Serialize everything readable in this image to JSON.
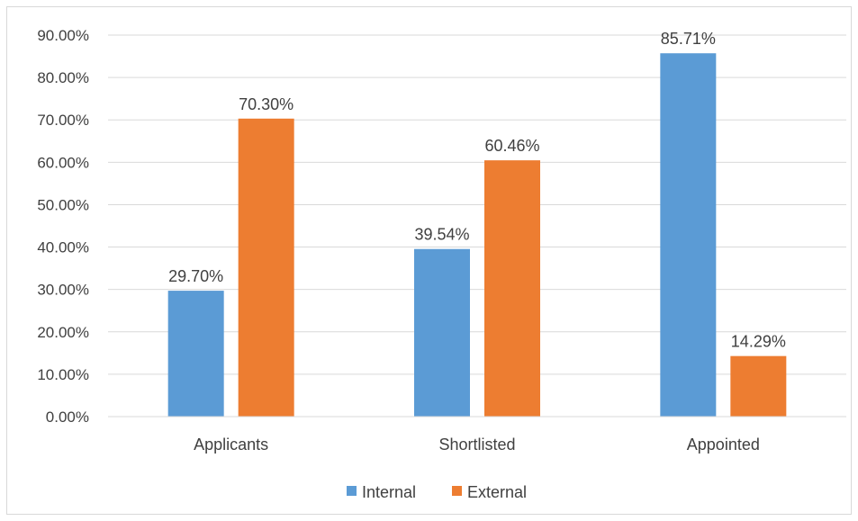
{
  "chart_data": {
    "type": "bar",
    "categories": [
      "Applicants",
      "Shortlisted",
      "Appointed"
    ],
    "series": [
      {
        "name": "Internal",
        "values": [
          29.7,
          39.54,
          85.71
        ],
        "labels": [
          "29.70%",
          "39.54%",
          "85.71%"
        ],
        "color": "#5b9bd5"
      },
      {
        "name": "External",
        "values": [
          70.3,
          60.46,
          14.29
        ],
        "labels": [
          "70.30%",
          "60.46%",
          "14.29%"
        ],
        "color": "#ed7d31"
      }
    ],
    "ylim": [
      0,
      90
    ],
    "yticks": [
      "0.00%",
      "10.00%",
      "20.00%",
      "30.00%",
      "40.00%",
      "50.00%",
      "60.00%",
      "70.00%",
      "80.00%",
      "90.00%"
    ],
    "title": "",
    "xlabel": "",
    "ylabel": "",
    "grid": true,
    "legend_position": "bottom"
  }
}
